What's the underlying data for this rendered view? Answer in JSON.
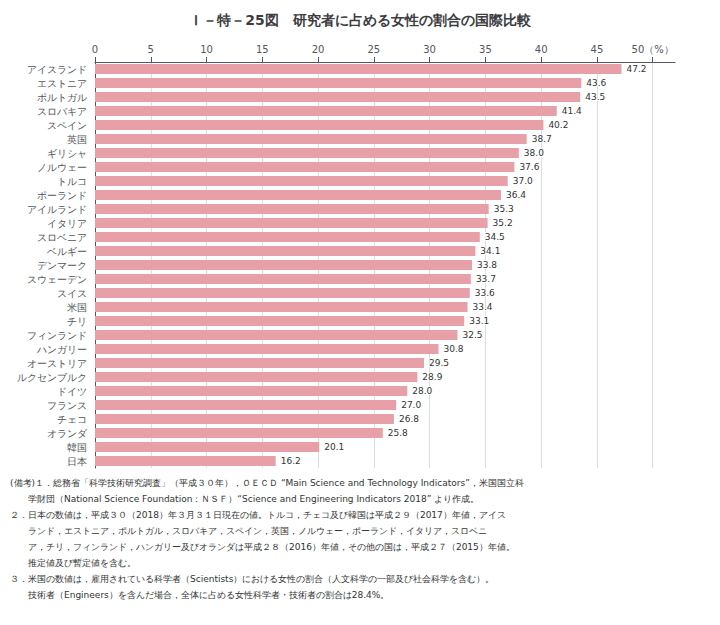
{
  "chart_data": {
    "type": "bar",
    "orientation": "horizontal",
    "title": "Ｉ－特－25図　研究者に占める女性の割合の国際比較",
    "categories": [
      "アイスランド",
      "エストニア",
      "ポルトガル",
      "スロバキア",
      "スペイン",
      "英国",
      "ギリシャ",
      "ノルウェー",
      "トルコ",
      "ポーランド",
      "アイルランド",
      "イタリア",
      "スロベニア",
      "ベルギー",
      "デンマーク",
      "スウェーデン",
      "スイス",
      "米国",
      "チリ",
      "フィンランド",
      "ハンガリー",
      "オーストリア",
      "ルクセンブルク",
      "ドイツ",
      "フランス",
      "チェコ",
      "オランダ",
      "韓国",
      "日本"
    ],
    "values": [
      47.2,
      43.6,
      43.5,
      41.4,
      40.2,
      38.7,
      38.0,
      37.6,
      37.0,
      36.4,
      35.3,
      35.2,
      34.5,
      34.1,
      33.8,
      33.7,
      33.6,
      33.4,
      33.1,
      32.5,
      30.8,
      29.5,
      28.9,
      28.0,
      27.0,
      26.8,
      25.8,
      20.1,
      16.2
    ],
    "value_labels": [
      "47.2",
      "43.6",
      "43.5",
      "41.4",
      "40.2",
      "38.7",
      "38.0",
      "37.6",
      "37.0",
      "36.4",
      "35.3",
      "35.2",
      "34.5",
      "34.1",
      "33.8",
      "33.7",
      "33.6",
      "33.4",
      "33.1",
      "32.5",
      "30.8",
      "29.5",
      "28.9",
      "28.0",
      "27.0",
      "26.8",
      "25.8",
      "20.1",
      "16.2"
    ],
    "color": "#e8a0a8",
    "xlim": [
      0,
      52
    ],
    "xticks": [
      0,
      5,
      10,
      15,
      20,
      25,
      30,
      35,
      40,
      45,
      {
        "value": 50,
        "label": "50（%）"
      }
    ],
    "grid": true,
    "data_labels": true,
    "annotations": [
      "(備考)１．総務省「科学技術研究調査」（平成３０年），ＯＥＣＤ “Main Science and Technology Indicators”，米国国立科",
      "　　学財団（National Science Foundation：ＮＳＦ）“Science and Engineering Indicators 2018” より作成。",
      "２．日本の数値は，平成３０（2018）年３月３１日現在の値。トルコ，チェコ及び韓国は平成２９（2017）年値，アイス",
      "　　ランド，エストニア，ポルトガル，スロバキア，スペイン，英国，ノルウェー，ポーランド，イタリア，スロベニ",
      "　　ア，チリ，フィンランド，ハンガリー及びオランダは平成２８（2016）年値，その他の国は，平成２７（2015）年値。",
      "　　推定値及び暫定値を含む。",
      "３．米国の数値は，雇用されている科学者（Scientists）における女性の割合（人文科学の一部及び社会科学を含む）。",
      "　　技術者（Engineers）を含んだ場合，全体に占める女性科学者・技術者の割合は28.4%。"
    ]
  }
}
